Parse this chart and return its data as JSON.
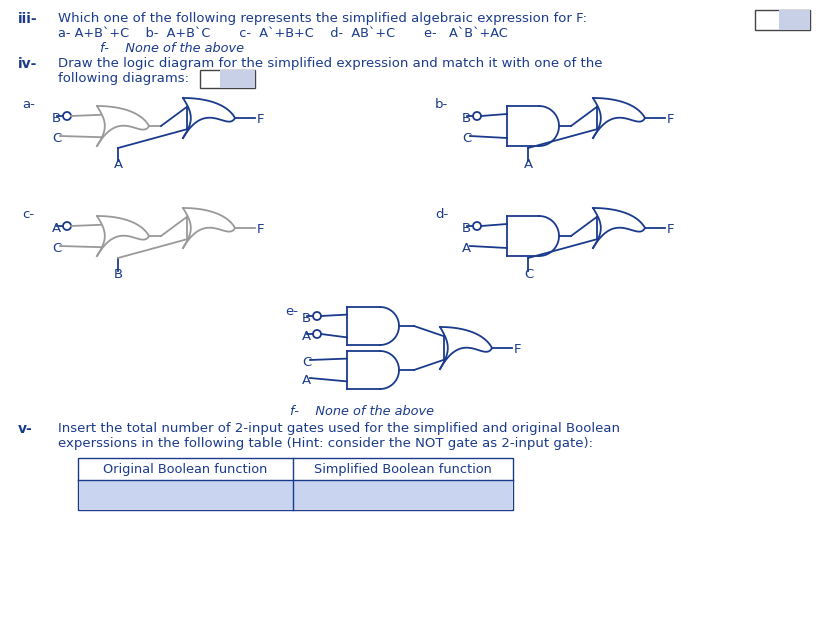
{
  "bg_color": "#ffffff",
  "text_color": "#1a3a8c",
  "gray_color": "#999999",
  "line_iii": "Which one of the following represents the simplified algebraic expression for F:",
  "opt_a": "a- A+B`+C",
  "opt_b": "b-  A+B`C",
  "opt_c": "c-  A`+B+C",
  "opt_d": "d-  AB`+C",
  "opt_e": "e-   A`B`+AC",
  "option_f": "f-    None of the above",
  "line_iv": "Draw the logic diagram for the simplified expression and match it with one of the",
  "line_iv2": "following diagrams:",
  "line_v": "Insert the total number of 2-input gates used for the simplified and original Boolean",
  "line_v2": "experssions in the following table (Hint: consider the NOT gate as 2-input gate):",
  "table_col1": "Original Boolean function",
  "table_col2": "Simplified Boolean function"
}
